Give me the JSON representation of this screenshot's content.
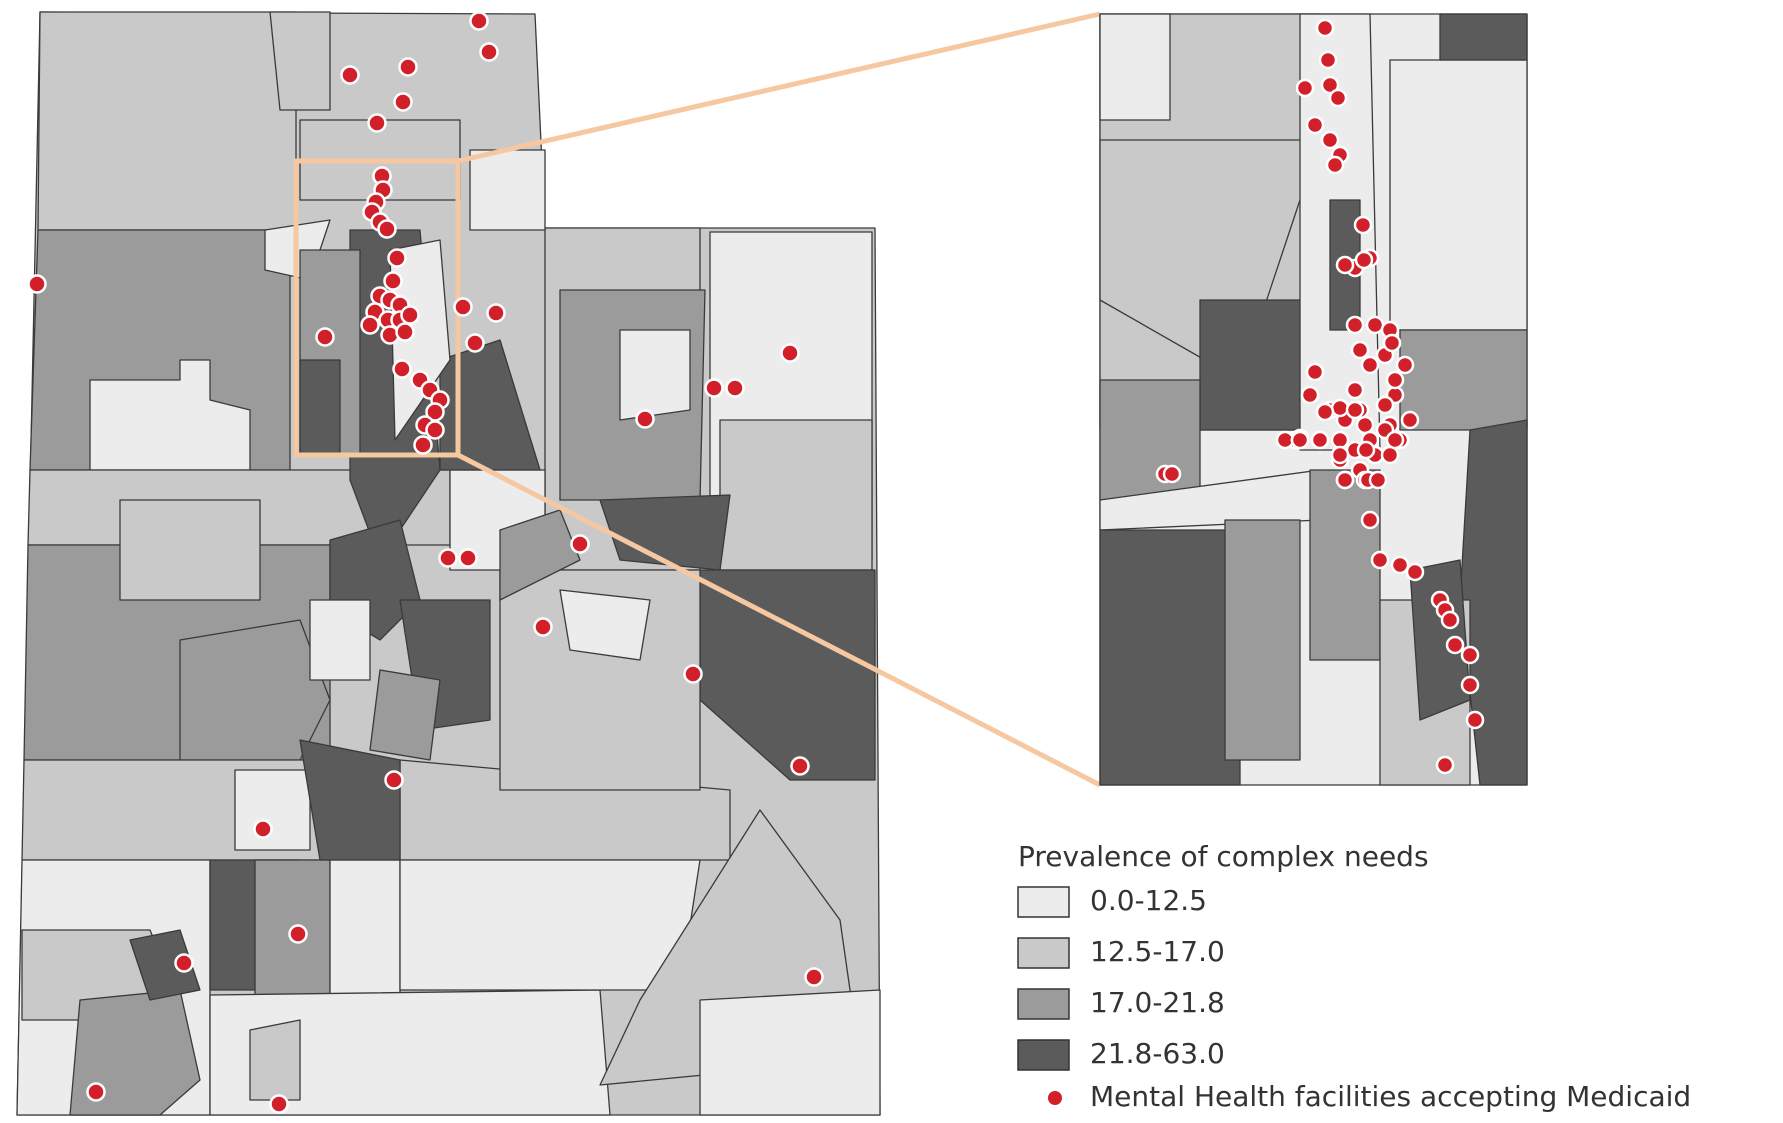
{
  "legend": {
    "title": "Prevalence of complex needs",
    "items": [
      {
        "label": "0.0-12.5",
        "color": "#ececec"
      },
      {
        "label": "12.5-17.0",
        "color": "#c9c9c9"
      },
      {
        "label": "17.0-21.8",
        "color": "#9b9b9b"
      },
      {
        "label": "21.8-63.0",
        "color": "#5b5b5b"
      }
    ],
    "facilities": {
      "label": "Mental Health facilities accepting Medicaid",
      "color": "#d2202a"
    }
  }
}
